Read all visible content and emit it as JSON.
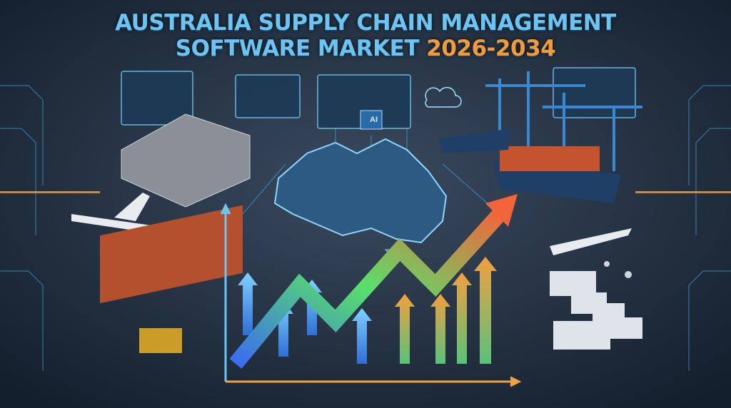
{
  "title": {
    "line1": "AUSTRALIA SUPPLY CHAIN MANAGEMENT",
    "line2_prefix": "SOFTWARE MARKET",
    "years": "2026-2034"
  },
  "panel_label": "AI",
  "colors": {
    "background": "#1b2a3c",
    "title": "#6cc4f2",
    "years": "#f39a3a",
    "circuit": "#4aa3d8",
    "growth_arrow_start": "#3a6cf0",
    "growth_arrow_mid": "#58e06a",
    "growth_arrow_end": "#f2653a"
  },
  "icons": [
    "warehouse-robot-icon",
    "airplane-icon",
    "cargo-ship-icon",
    "port-crane-icon",
    "freight-train-icon",
    "truck-icon",
    "drone-icon",
    "cloud-icon",
    "australia-map-icon",
    "growth-arrow-icon"
  ]
}
